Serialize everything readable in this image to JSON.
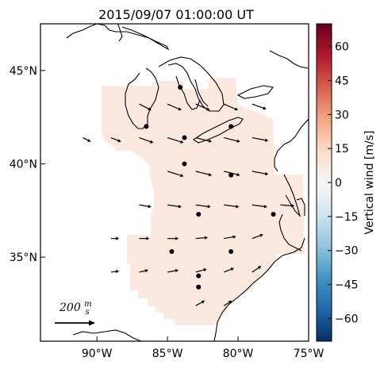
{
  "title": "2015/09/07 01:00:00 UT",
  "map": {
    "lon_range": [
      -94,
      -75
    ],
    "lat_range": [
      30.5,
      47.5
    ],
    "lon_ticks": [
      {
        "value": -90,
        "label": "90°W"
      },
      {
        "value": -85,
        "label": "85°W"
      },
      {
        "value": -80,
        "label": "80°W"
      },
      {
        "value": -75,
        "label": "75°W"
      }
    ],
    "lat_ticks": [
      {
        "value": 45,
        "label": "45°N"
      },
      {
        "value": 40,
        "label": "40°N"
      },
      {
        "value": 35,
        "label": "35°N"
      }
    ],
    "region_fill_color": "#fbe9e0",
    "coastline_color": "#000000",
    "arrow_color": "#000000",
    "station_color": "#000000"
  },
  "colorbar": {
    "label": "Vertical wind [m/s]",
    "range": [
      -70,
      70
    ],
    "ticks": [
      {
        "value": 60,
        "label": "60"
      },
      {
        "value": 45,
        "label": "45"
      },
      {
        "value": 30,
        "label": "30"
      },
      {
        "value": 15,
        "label": "15"
      },
      {
        "value": 0,
        "label": "0"
      },
      {
        "value": -15,
        "label": "−15"
      },
      {
        "value": -30,
        "label": "−30"
      },
      {
        "value": -45,
        "label": "−45"
      },
      {
        "value": -60,
        "label": "−60"
      }
    ],
    "colormap": "RdBu_r",
    "colors": [
      "#053061",
      "#2166ac",
      "#4393c3",
      "#92c5de",
      "#d1e5f0",
      "#f7f7f7",
      "#fddbc7",
      "#f4a582",
      "#d6604d",
      "#b2182b",
      "#67001f"
    ]
  },
  "scale_arrow": {
    "label": "200 m/s",
    "value": 200
  },
  "chart_data": {
    "type": "vector-map",
    "title": "2015/09/07 01:00:00 UT",
    "colorbar_label": "Vertical wind [m/s]",
    "colorbar_range": [
      -70,
      70
    ],
    "vertical_wind_field_approx": 6,
    "stations": [
      {
        "lon": -86.5,
        "lat": 42.0
      },
      {
        "lon": -84.1,
        "lat": 44.1
      },
      {
        "lon": -83.8,
        "lat": 41.4
      },
      {
        "lon": -80.5,
        "lat": 42.0
      },
      {
        "lon": -83.8,
        "lat": 40.0
      },
      {
        "lon": -80.5,
        "lat": 39.4
      },
      {
        "lon": -82.8,
        "lat": 37.3
      },
      {
        "lon": -77.5,
        "lat": 37.3
      },
      {
        "lon": -84.7,
        "lat": 35.3
      },
      {
        "lon": -80.5,
        "lat": 35.3
      },
      {
        "lon": -82.8,
        "lat": 34.0
      },
      {
        "lon": -82.8,
        "lat": 33.4
      }
    ],
    "wind_vectors_ms": [
      {
        "lon": -87.0,
        "lat": 43.2,
        "u": 60,
        "v": -30
      },
      {
        "lon": -85.0,
        "lat": 43.2,
        "u": 70,
        "v": -30
      },
      {
        "lon": -83.0,
        "lat": 43.2,
        "u": 70,
        "v": -30
      },
      {
        "lon": -81.0,
        "lat": 43.2,
        "u": 70,
        "v": -30
      },
      {
        "lon": -79.0,
        "lat": 43.2,
        "u": 70,
        "v": -25
      },
      {
        "lon": -91.0,
        "lat": 41.4,
        "u": 40,
        "v": -20
      },
      {
        "lon": -89.0,
        "lat": 41.4,
        "u": 50,
        "v": -20
      },
      {
        "lon": -87.0,
        "lat": 41.4,
        "u": 70,
        "v": -25
      },
      {
        "lon": -85.0,
        "lat": 41.4,
        "u": 80,
        "v": -25
      },
      {
        "lon": -83.0,
        "lat": 41.4,
        "u": 80,
        "v": -20
      },
      {
        "lon": -81.0,
        "lat": 41.4,
        "u": 80,
        "v": -20
      },
      {
        "lon": -79.0,
        "lat": 41.4,
        "u": 80,
        "v": -15
      },
      {
        "lon": -85.0,
        "lat": 39.6,
        "u": 80,
        "v": -25
      },
      {
        "lon": -83.0,
        "lat": 39.6,
        "u": 80,
        "v": -20
      },
      {
        "lon": -81.0,
        "lat": 39.6,
        "u": 80,
        "v": -20
      },
      {
        "lon": -79.0,
        "lat": 39.6,
        "u": 80,
        "v": -15
      },
      {
        "lon": -87.0,
        "lat": 37.8,
        "u": 60,
        "v": -10
      },
      {
        "lon": -85.0,
        "lat": 37.8,
        "u": 70,
        "v": -10
      },
      {
        "lon": -83.0,
        "lat": 37.8,
        "u": 75,
        "v": -10
      },
      {
        "lon": -81.0,
        "lat": 37.8,
        "u": 75,
        "v": -10
      },
      {
        "lon": -79.0,
        "lat": 37.8,
        "u": 75,
        "v": -10
      },
      {
        "lon": -77.0,
        "lat": 37.8,
        "u": 70,
        "v": -5
      },
      {
        "lon": -89.0,
        "lat": 36.0,
        "u": 40,
        "v": 0
      },
      {
        "lon": -87.0,
        "lat": 36.0,
        "u": 50,
        "v": 0
      },
      {
        "lon": -85.0,
        "lat": 36.0,
        "u": 55,
        "v": 0
      },
      {
        "lon": -83.0,
        "lat": 36.0,
        "u": 60,
        "v": 5
      },
      {
        "lon": -81.0,
        "lat": 36.0,
        "u": 60,
        "v": 10
      },
      {
        "lon": -79.0,
        "lat": 36.0,
        "u": 55,
        "v": 20
      },
      {
        "lon": -89.0,
        "lat": 34.2,
        "u": 40,
        "v": 5
      },
      {
        "lon": -87.0,
        "lat": 34.2,
        "u": 45,
        "v": 10
      },
      {
        "lon": -85.0,
        "lat": 34.2,
        "u": 55,
        "v": 10
      },
      {
        "lon": -83.0,
        "lat": 34.2,
        "u": 55,
        "v": 15
      },
      {
        "lon": -81.0,
        "lat": 34.2,
        "u": 50,
        "v": 20
      },
      {
        "lon": -79.0,
        "lat": 34.2,
        "u": 45,
        "v": 30
      },
      {
        "lon": -83.0,
        "lat": 32.4,
        "u": 45,
        "v": 25
      },
      {
        "lon": -81.0,
        "lat": 32.4,
        "u": 40,
        "v": 25
      }
    ]
  }
}
